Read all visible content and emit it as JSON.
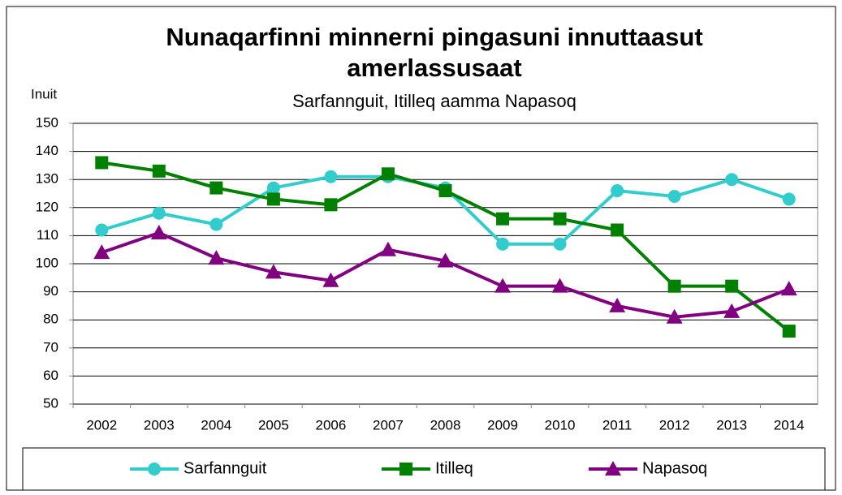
{
  "chart_data": {
    "type": "line",
    "title": [
      "Nunaqarfinni minnerni pingasuni innuttaasut",
      "amerlassusaat"
    ],
    "subtitle": "Sarfannguit,  Itilleq  aamma Napasoq",
    "y_label": "Inuit",
    "categories": [
      "2002",
      "2003",
      "2004",
      "2005",
      "2006",
      "2007",
      "2008",
      "2009",
      "2010",
      "2011",
      "2012",
      "2013",
      "2014"
    ],
    "series": [
      {
        "name": "Sarfannguit",
        "color": "#33cccc",
        "marker": "circle",
        "values": [
          112,
          118,
          114,
          127,
          131,
          131,
          127,
          107,
          107,
          126,
          124,
          130,
          123
        ]
      },
      {
        "name": "Itilleq",
        "color": "#008000",
        "marker": "square",
        "values": [
          136,
          133,
          127,
          123,
          121,
          132,
          126,
          116,
          116,
          112,
          92,
          92,
          76
        ]
      },
      {
        "name": "Napasoq",
        "color": "#800080",
        "marker": "triangle",
        "values": [
          104,
          111,
          102,
          97,
          94,
          105,
          101,
          92,
          92,
          85,
          81,
          83,
          91
        ]
      }
    ],
    "ylim": [
      50,
      150
    ],
    "yticks": [
      50,
      60,
      70,
      80,
      90,
      100,
      110,
      120,
      130,
      140,
      150
    ],
    "grid": true,
    "legend": "bottom"
  }
}
